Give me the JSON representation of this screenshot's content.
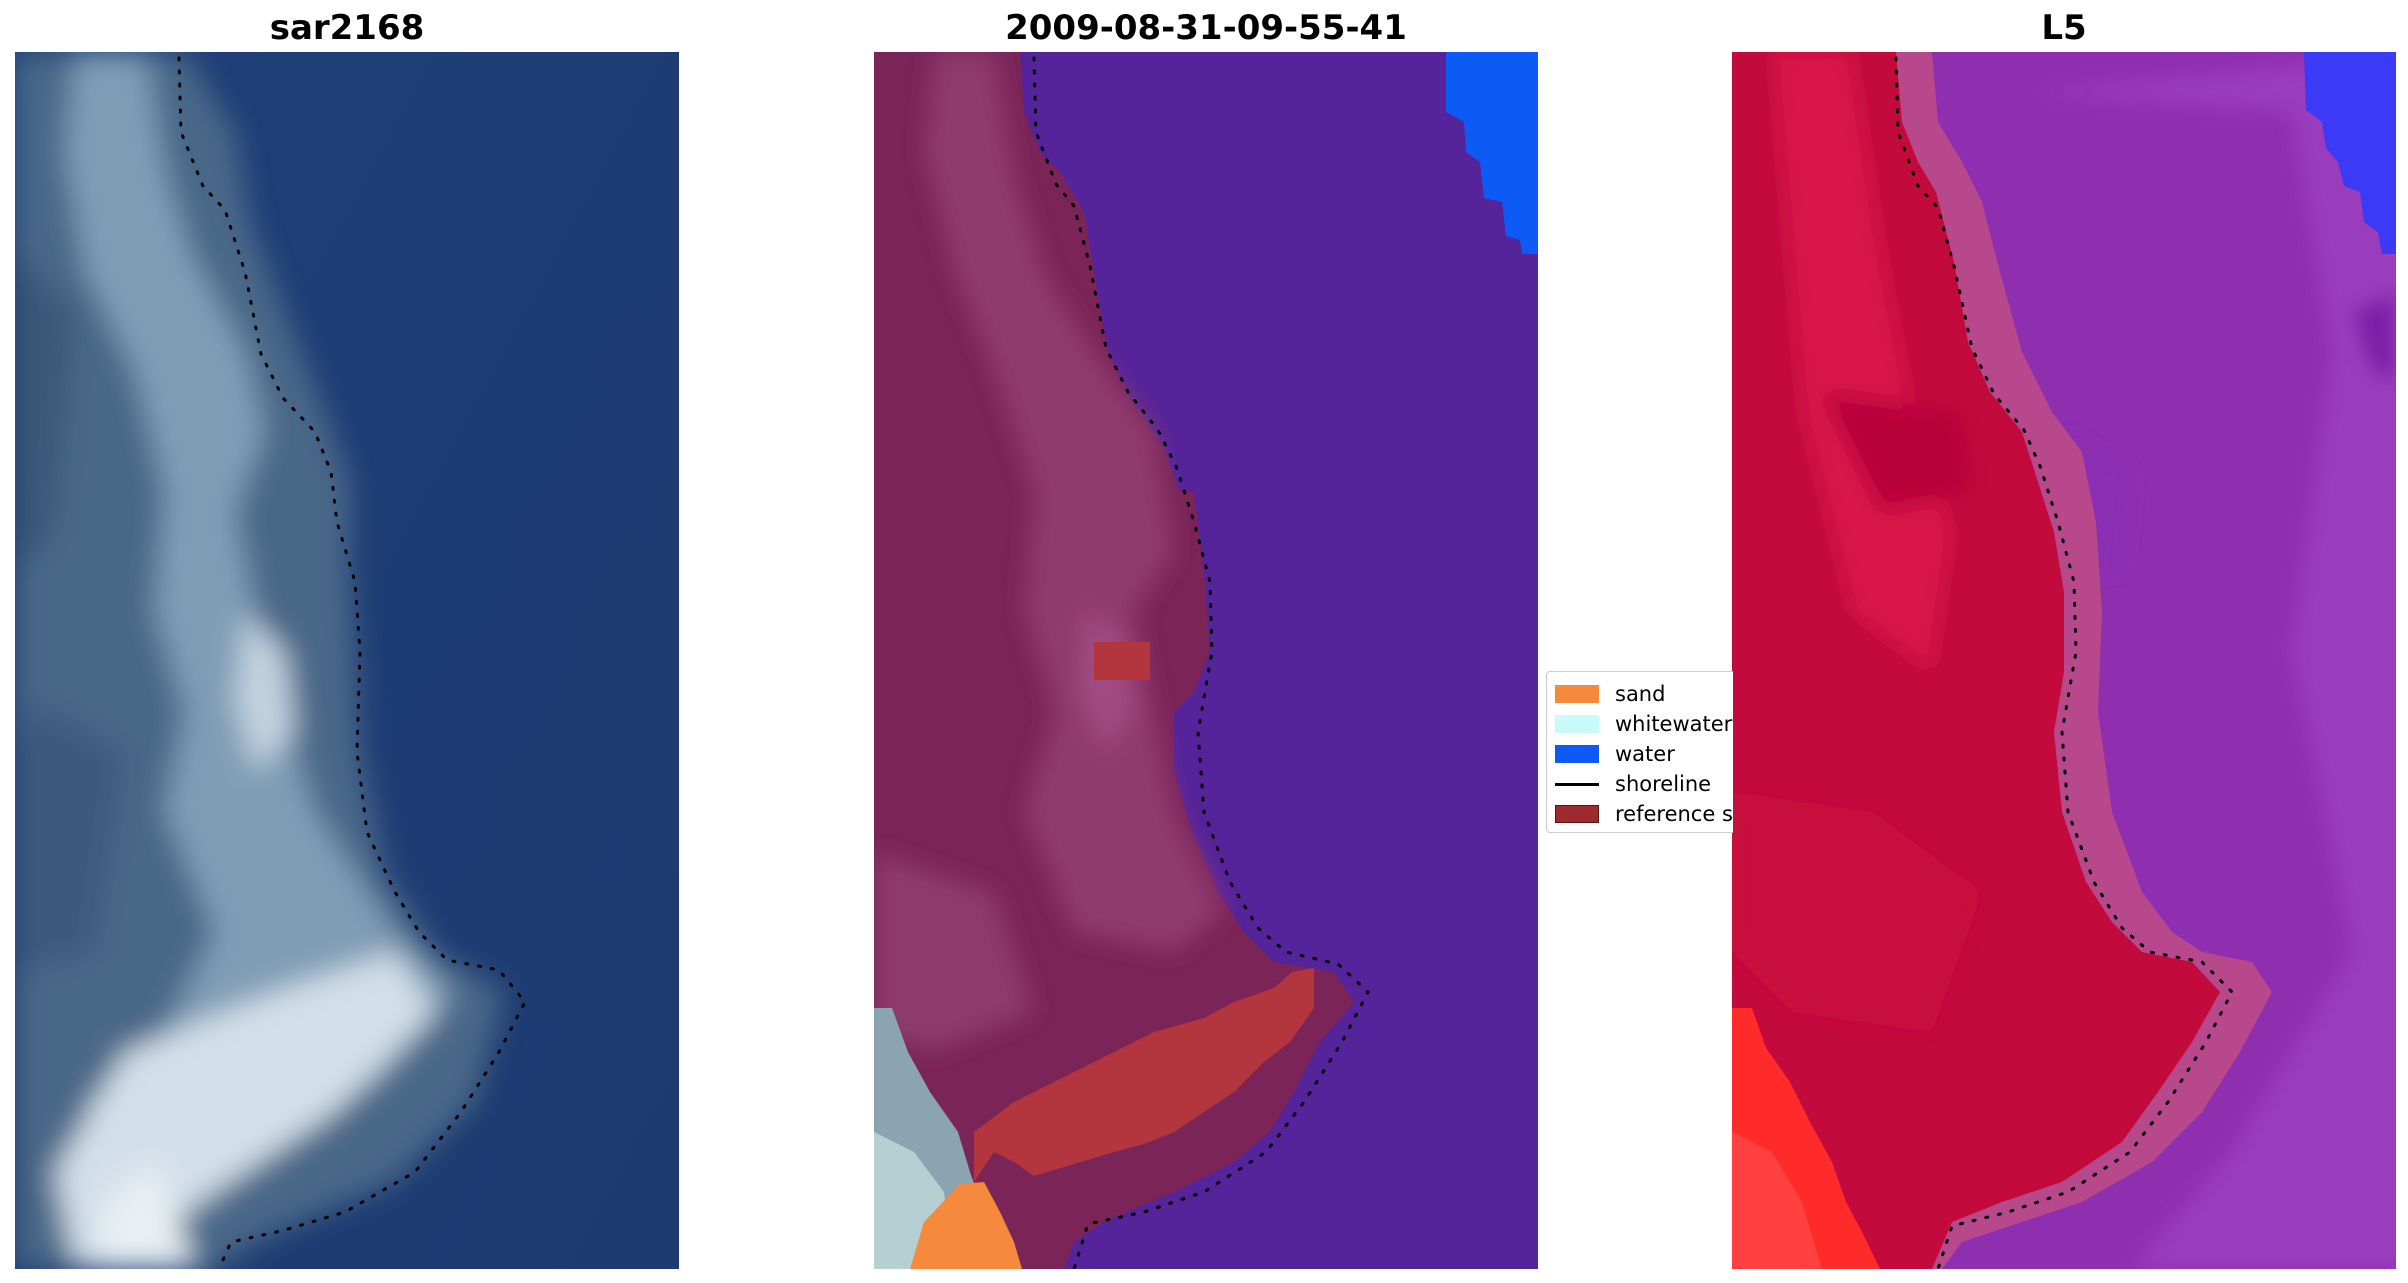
{
  "panels": {
    "left_title": "sar2168",
    "middle_title": "2009-08-31-09-55-41",
    "right_title": "L5"
  },
  "legend": {
    "items": [
      {
        "label": "sand",
        "color": "#f5893c",
        "kind": "patch"
      },
      {
        "label": "whitewater",
        "color": "#c8fafa",
        "kind": "patch"
      },
      {
        "label": "water",
        "color": "#0d5af5",
        "kind": "patch"
      },
      {
        "label": "shoreline",
        "color": "#000000",
        "kind": "line"
      },
      {
        "label": "reference s",
        "color": "#9c2a2e",
        "kind": "patch"
      }
    ]
  },
  "colors": {
    "sea_rgb": "#1f3d75",
    "land_rgb": "#4a6788",
    "surf_rgb": "#c8d6e2",
    "class_land": "#7a2458",
    "class_land_light": "#8f3a6f",
    "class_water": "#55239a",
    "class_water_bright": "#0d5af5",
    "class_sand": "#f5893c",
    "class_whitewater": "#b6cfd3",
    "class_reference": "#b3363f",
    "index_land": "#c20a3d",
    "index_land_bright": "#ff2a2a",
    "index_water": "#8e2fb0",
    "index_transition": "#b8488c",
    "index_water_blue": "#3b3af5"
  }
}
